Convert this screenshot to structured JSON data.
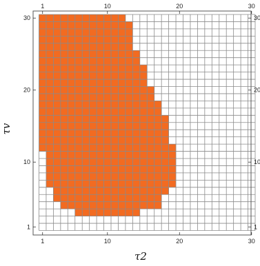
{
  "chart_data": {
    "type": "heatmap",
    "title": "",
    "xlabel": "τ2",
    "ylabel": "τv",
    "xlim": [
      1,
      30
    ],
    "ylim": [
      1,
      30
    ],
    "x_ticks": [
      "1",
      "10",
      "20",
      "30"
    ],
    "y_ticks": [
      "1",
      "10",
      "20",
      "30"
    ],
    "grid": true,
    "cell_colors": {
      "filled": "#f26b21",
      "empty": "#ffffff",
      "grid_line": "#8a8a8a"
    },
    "filled_ranges_by_row": [
      {
        "tau_v": 30,
        "tau2_from": 1,
        "tau2_to": 12
      },
      {
        "tau_v": 29,
        "tau2_from": 1,
        "tau2_to": 13
      },
      {
        "tau_v": 28,
        "tau2_from": 1,
        "tau2_to": 13
      },
      {
        "tau_v": 27,
        "tau2_from": 1,
        "tau2_to": 13
      },
      {
        "tau_v": 26,
        "tau2_from": 1,
        "tau2_to": 13
      },
      {
        "tau_v": 25,
        "tau2_from": 1,
        "tau2_to": 14
      },
      {
        "tau_v": 24,
        "tau2_from": 1,
        "tau2_to": 14
      },
      {
        "tau_v": 23,
        "tau2_from": 1,
        "tau2_to": 15
      },
      {
        "tau_v": 22,
        "tau2_from": 1,
        "tau2_to": 15
      },
      {
        "tau_v": 21,
        "tau2_from": 1,
        "tau2_to": 15
      },
      {
        "tau_v": 20,
        "tau2_from": 1,
        "tau2_to": 16
      },
      {
        "tau_v": 19,
        "tau2_from": 1,
        "tau2_to": 16
      },
      {
        "tau_v": 18,
        "tau2_from": 1,
        "tau2_to": 17
      },
      {
        "tau_v": 17,
        "tau2_from": 1,
        "tau2_to": 17
      },
      {
        "tau_v": 16,
        "tau2_from": 1,
        "tau2_to": 18
      },
      {
        "tau_v": 15,
        "tau2_from": 1,
        "tau2_to": 18
      },
      {
        "tau_v": 14,
        "tau2_from": 1,
        "tau2_to": 18
      },
      {
        "tau_v": 13,
        "tau2_from": 1,
        "tau2_to": 18
      },
      {
        "tau_v": 12,
        "tau2_from": 1,
        "tau2_to": 19
      },
      {
        "tau_v": 11,
        "tau2_from": 2,
        "tau2_to": 19
      },
      {
        "tau_v": 10,
        "tau2_from": 2,
        "tau2_to": 19
      },
      {
        "tau_v": 9,
        "tau2_from": 2,
        "tau2_to": 19
      },
      {
        "tau_v": 8,
        "tau2_from": 2,
        "tau2_to": 19
      },
      {
        "tau_v": 7,
        "tau2_from": 2,
        "tau2_to": 19
      },
      {
        "tau_v": 6,
        "tau2_from": 3,
        "tau2_to": 18
      },
      {
        "tau_v": 5,
        "tau2_from": 3,
        "tau2_to": 17
      },
      {
        "tau_v": 4,
        "tau2_from": 4,
        "tau2_to": 17
      },
      {
        "tau_v": 3,
        "tau2_from": 6,
        "tau2_to": 14
      }
    ]
  }
}
